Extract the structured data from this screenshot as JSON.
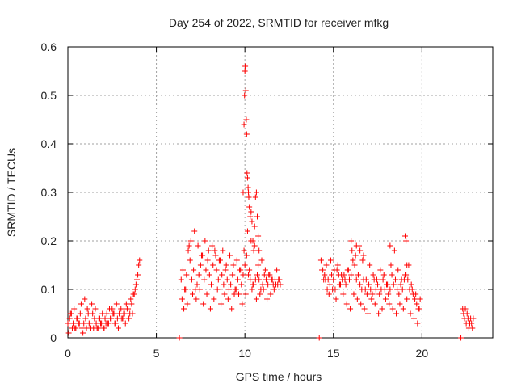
{
  "chart_data": {
    "type": "scatter",
    "title": "Day 254 of 2022, SRMTID for receiver mfkg",
    "xlabel": "GPS time / hours",
    "ylabel": "SRMTID / TECUs",
    "xlim": [
      0,
      24
    ],
    "ylim": [
      0,
      0.6
    ],
    "xticks": [
      "0",
      "5",
      "10",
      "15",
      "20"
    ],
    "xtick_values": [
      0,
      5,
      10,
      15,
      20
    ],
    "yticks": [
      "0",
      "0.1",
      "0.2",
      "0.3",
      "0.4",
      "0.5",
      "0.6"
    ],
    "ytick_values": [
      0,
      0.1,
      0.2,
      0.3,
      0.4,
      0.5,
      0.6
    ],
    "grid": true,
    "marker": "+",
    "series": [
      {
        "name": "SRMTID",
        "color": "#ff0000",
        "x": [
          0.0,
          0.1,
          0.2,
          0.3,
          0.4,
          0.5,
          0.6,
          0.7,
          0.8,
          0.9,
          1.0,
          1.1,
          1.2,
          1.3,
          1.4,
          1.5,
          1.6,
          1.7,
          1.8,
          1.9,
          2.0,
          2.1,
          2.2,
          2.3,
          2.4,
          2.5,
          2.6,
          2.7,
          2.8,
          2.9,
          3.0,
          3.1,
          3.2,
          3.3,
          3.4,
          3.5,
          3.6,
          3.7,
          3.8,
          3.9,
          4.0,
          4.05,
          0.15,
          0.35,
          0.55,
          0.75,
          0.95,
          1.15,
          1.35,
          1.55,
          1.75,
          1.95,
          2.15,
          2.35,
          2.55,
          2.75,
          2.95,
          3.15,
          3.35,
          3.55,
          3.75,
          3.95,
          0.05,
          0.25,
          0.45,
          0.65,
          0.85,
          1.05,
          1.25,
          1.45,
          1.65,
          1.85,
          2.05,
          2.25,
          2.45,
          2.65,
          2.85,
          3.05,
          3.25,
          3.45,
          3.65,
          3.85,
          6.3,
          6.4,
          6.5,
          6.6,
          6.7,
          6.8,
          6.9,
          7.0,
          7.1,
          7.2,
          7.3,
          7.4,
          7.5,
          7.6,
          7.7,
          7.8,
          7.9,
          8.0,
          8.1,
          8.2,
          8.3,
          8.4,
          8.5,
          8.6,
          8.7,
          8.8,
          8.9,
          9.0,
          9.1,
          9.2,
          9.3,
          9.4,
          9.5,
          9.6,
          9.7,
          9.8,
          9.9,
          10.0,
          10.1,
          10.2,
          10.3,
          10.4,
          10.5,
          10.6,
          10.7,
          10.8,
          10.9,
          11.0,
          11.1,
          11.2,
          11.3,
          11.4,
          11.5,
          11.6,
          11.7,
          11.8,
          11.9,
          12.0,
          6.45,
          6.65,
          6.85,
          7.05,
          7.25,
          7.45,
          7.65,
          7.85,
          8.05,
          8.25,
          8.45,
          8.65,
          8.85,
          9.05,
          9.25,
          9.45,
          9.65,
          9.85,
          10.05,
          10.25,
          10.45,
          10.65,
          10.85,
          11.05,
          11.25,
          11.45,
          11.65,
          11.85,
          6.55,
          6.75,
          6.95,
          7.15,
          7.35,
          7.55,
          7.75,
          7.95,
          8.15,
          8.35,
          8.55,
          8.75,
          8.95,
          9.15,
          9.35,
          9.55,
          9.75,
          9.95,
          10.15,
          10.35,
          10.55,
          10.75,
          10.95,
          11.15,
          11.35,
          11.55,
          11.75,
          11.95,
          9.9,
          9.95,
          9.98,
          10.0,
          10.02,
          10.05,
          10.08,
          10.1,
          10.12,
          10.15,
          10.18,
          10.2,
          10.22,
          10.25,
          10.3,
          10.35,
          10.4,
          10.45,
          10.5,
          10.55,
          10.6,
          10.65,
          10.7,
          10.75,
          10.8,
          14.2,
          14.3,
          14.4,
          14.5,
          14.6,
          14.7,
          14.8,
          14.9,
          15.0,
          15.1,
          15.2,
          15.3,
          15.4,
          15.5,
          15.6,
          15.7,
          15.8,
          15.9,
          16.0,
          16.1,
          16.2,
          16.3,
          16.4,
          16.5,
          16.6,
          16.7,
          16.8,
          16.9,
          17.0,
          17.1,
          17.2,
          17.3,
          17.4,
          17.5,
          17.6,
          17.7,
          17.8,
          17.9,
          18.0,
          18.1,
          18.2,
          18.3,
          18.4,
          18.5,
          18.6,
          18.7,
          18.8,
          18.9,
          19.0,
          19.1,
          19.2,
          19.3,
          19.4,
          19.5,
          19.6,
          19.7,
          19.8,
          19.9,
          14.35,
          14.55,
          14.75,
          14.95,
          15.15,
          15.35,
          15.55,
          15.75,
          15.95,
          16.15,
          16.35,
          16.55,
          16.75,
          16.95,
          17.15,
          17.35,
          17.55,
          17.75,
          17.95,
          18.15,
          18.35,
          18.55,
          18.75,
          18.95,
          19.15,
          19.35,
          19.55,
          19.75,
          14.45,
          14.65,
          14.85,
          15.05,
          15.25,
          15.45,
          15.65,
          15.85,
          16.05,
          16.25,
          16.45,
          16.65,
          16.85,
          17.05,
          17.25,
          17.45,
          17.65,
          17.85,
          18.05,
          18.25,
          18.45,
          18.65,
          18.85,
          19.05,
          19.25,
          19.45,
          19.65,
          19.85,
          16.0,
          16.3,
          16.5,
          16.7,
          18.2,
          19.05,
          19.1,
          19.15,
          22.2,
          22.3,
          22.35,
          22.4,
          22.45,
          22.5,
          22.55,
          22.6,
          22.65,
          22.7,
          22.75,
          22.8,
          22.85,
          22.9
        ],
        "y": [
          0.03,
          0.04,
          0.05,
          0.03,
          0.02,
          0.04,
          0.03,
          0.05,
          0.02,
          0.03,
          0.04,
          0.06,
          0.03,
          0.02,
          0.05,
          0.04,
          0.03,
          0.02,
          0.04,
          0.03,
          0.02,
          0.04,
          0.05,
          0.03,
          0.04,
          0.06,
          0.05,
          0.03,
          0.04,
          0.05,
          0.06,
          0.04,
          0.05,
          0.07,
          0.06,
          0.05,
          0.07,
          0.09,
          0.1,
          0.12,
          0.15,
          0.16,
          0.05,
          0.06,
          0.04,
          0.07,
          0.08,
          0.05,
          0.07,
          0.06,
          0.04,
          0.05,
          0.03,
          0.06,
          0.05,
          0.07,
          0.04,
          0.05,
          0.06,
          0.08,
          0.09,
          0.13,
          0.01,
          0.02,
          0.02,
          0.03,
          0.01,
          0.02,
          0.03,
          0.02,
          0.02,
          0.03,
          0.02,
          0.03,
          0.04,
          0.03,
          0.02,
          0.04,
          0.03,
          0.04,
          0.05,
          0.11,
          0.0,
          0.12,
          0.14,
          0.1,
          0.13,
          0.18,
          0.16,
          0.12,
          0.14,
          0.1,
          0.11,
          0.13,
          0.15,
          0.17,
          0.12,
          0.14,
          0.16,
          0.13,
          0.11,
          0.15,
          0.18,
          0.14,
          0.12,
          0.16,
          0.13,
          0.11,
          0.14,
          0.12,
          0.1,
          0.11,
          0.13,
          0.09,
          0.1,
          0.12,
          0.14,
          0.11,
          0.13,
          0.15,
          0.17,
          0.13,
          0.12,
          0.1,
          0.11,
          0.12,
          0.13,
          0.12,
          0.1,
          0.11,
          0.13,
          0.12,
          0.11,
          0.13,
          0.12,
          0.11,
          0.12,
          0.14,
          0.12,
          0.11,
          0.08,
          0.1,
          0.19,
          0.09,
          0.08,
          0.1,
          0.07,
          0.09,
          0.06,
          0.08,
          0.1,
          0.07,
          0.09,
          0.08,
          0.06,
          0.1,
          0.09,
          0.07,
          0.09,
          0.14,
          0.11,
          0.08,
          0.09,
          0.1,
          0.08,
          0.09,
          0.1,
          0.11,
          0.06,
          0.07,
          0.2,
          0.22,
          0.19,
          0.17,
          0.2,
          0.18,
          0.19,
          0.17,
          0.16,
          0.18,
          0.15,
          0.17,
          0.15,
          0.16,
          0.14,
          0.18,
          0.22,
          0.2,
          0.19,
          0.15,
          0.16,
          0.14,
          0.13,
          0.12,
          0.11,
          0.12,
          0.3,
          0.44,
          0.5,
          0.55,
          0.56,
          0.51,
          0.45,
          0.42,
          0.34,
          0.33,
          0.31,
          0.3,
          0.29,
          0.27,
          0.25,
          0.26,
          0.24,
          0.2,
          0.18,
          0.23,
          0.29,
          0.3,
          0.25,
          0.21,
          0.18,
          0.0,
          0.16,
          0.14,
          0.13,
          0.15,
          0.12,
          0.11,
          0.13,
          0.12,
          0.1,
          0.14,
          0.13,
          0.11,
          0.12,
          0.13,
          0.11,
          0.14,
          0.12,
          0.13,
          0.16,
          0.15,
          0.12,
          0.13,
          0.11,
          0.1,
          0.12,
          0.1,
          0.09,
          0.11,
          0.1,
          0.09,
          0.12,
          0.1,
          0.11,
          0.09,
          0.1,
          0.12,
          0.1,
          0.11,
          0.09,
          0.1,
          0.13,
          0.11,
          0.12,
          0.1,
          0.09,
          0.11,
          0.1,
          0.12,
          0.13,
          0.12,
          0.1,
          0.11,
          0.09,
          0.08,
          0.07,
          0.06,
          0.08,
          0.14,
          0.12,
          0.09,
          0.1,
          0.08,
          0.11,
          0.09,
          0.07,
          0.06,
          0.09,
          0.08,
          0.07,
          0.06,
          0.05,
          0.08,
          0.07,
          0.05,
          0.06,
          0.08,
          0.07,
          0.06,
          0.05,
          0.07,
          0.06,
          0.08,
          0.05,
          0.04,
          0.03,
          0.12,
          0.1,
          0.16,
          0.14,
          0.15,
          0.13,
          0.12,
          0.14,
          0.18,
          0.17,
          0.19,
          0.16,
          0.12,
          0.15,
          0.13,
          0.12,
          0.14,
          0.13,
          0.11,
          0.15,
          0.18,
          0.14,
          0.12,
          0.13,
          0.15,
          0.1,
          0.09,
          0.06,
          0.2,
          0.19,
          0.18,
          0.17,
          0.19,
          0.21,
          0.2,
          0.15,
          0.0,
          0.06,
          0.05,
          0.04,
          0.06,
          0.03,
          0.05,
          0.04,
          0.02,
          0.03,
          0.04,
          0.03,
          0.02,
          0.04
        ]
      }
    ]
  }
}
